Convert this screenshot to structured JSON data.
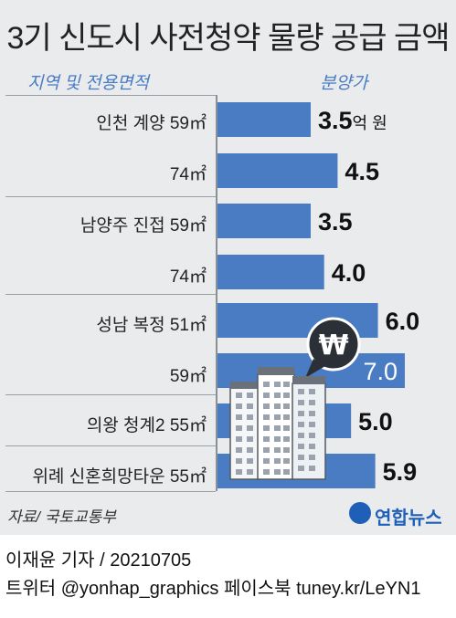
{
  "title": "3기 신도시 사전청약 물량 공급 금액",
  "header_left": "지역 및 전용면적",
  "header_right": "분양가",
  "rows": [
    {
      "label": "인천 계양 59㎡"
    },
    {
      "label": "74㎡"
    },
    {
      "label": "남양주 진접 59㎡"
    },
    {
      "label": "74㎡"
    },
    {
      "label": "성남 복정 51㎡"
    },
    {
      "label": "59㎡"
    },
    {
      "label": "의왕 청계2 55㎡"
    },
    {
      "label": "위례 신혼희망타운 55㎡"
    }
  ],
  "unit_label": "억 원",
  "chart_data": {
    "type": "bar",
    "orientation": "horizontal",
    "title": "3기 신도시 사전청약 물량 공급 금액",
    "categories": [
      "인천 계양 59㎡",
      "74㎡",
      "남양주 진접 59㎡",
      "74㎡",
      "성남 복정 51㎡",
      "59㎡",
      "의왕 청계2 55㎡",
      "위례 신혼희망타운 55㎡"
    ],
    "values": [
      3.5,
      4.5,
      3.5,
      4.0,
      6.0,
      7.0,
      5.0,
      5.9
    ],
    "value_labels": [
      "3.5",
      "4.5",
      "3.5",
      "4.0",
      "6.0",
      "7.0",
      "5.0",
      "5.9"
    ],
    "xlabel": "지역 및 전용면적",
    "ylabel": "분양가",
    "unit": "억 원",
    "xlim": [
      0,
      7.0
    ],
    "grid": false
  },
  "colors": {
    "bar": "#4a7cc4",
    "panel": "#e9ebed",
    "header": "#4a7cc4",
    "won_bubble": "#2b2f36"
  },
  "icons": [
    "won-bubble-icon",
    "apartment-building-icon",
    "yonhap-logo-icon"
  ],
  "source": "자료/ 국토교통부",
  "logo_text": "연합뉴스",
  "credit_line1": "이재윤 기자 / 20210705",
  "credit_line2": "트위터 @yonhap_graphics  페이스북 tuney.kr/LeYN1"
}
